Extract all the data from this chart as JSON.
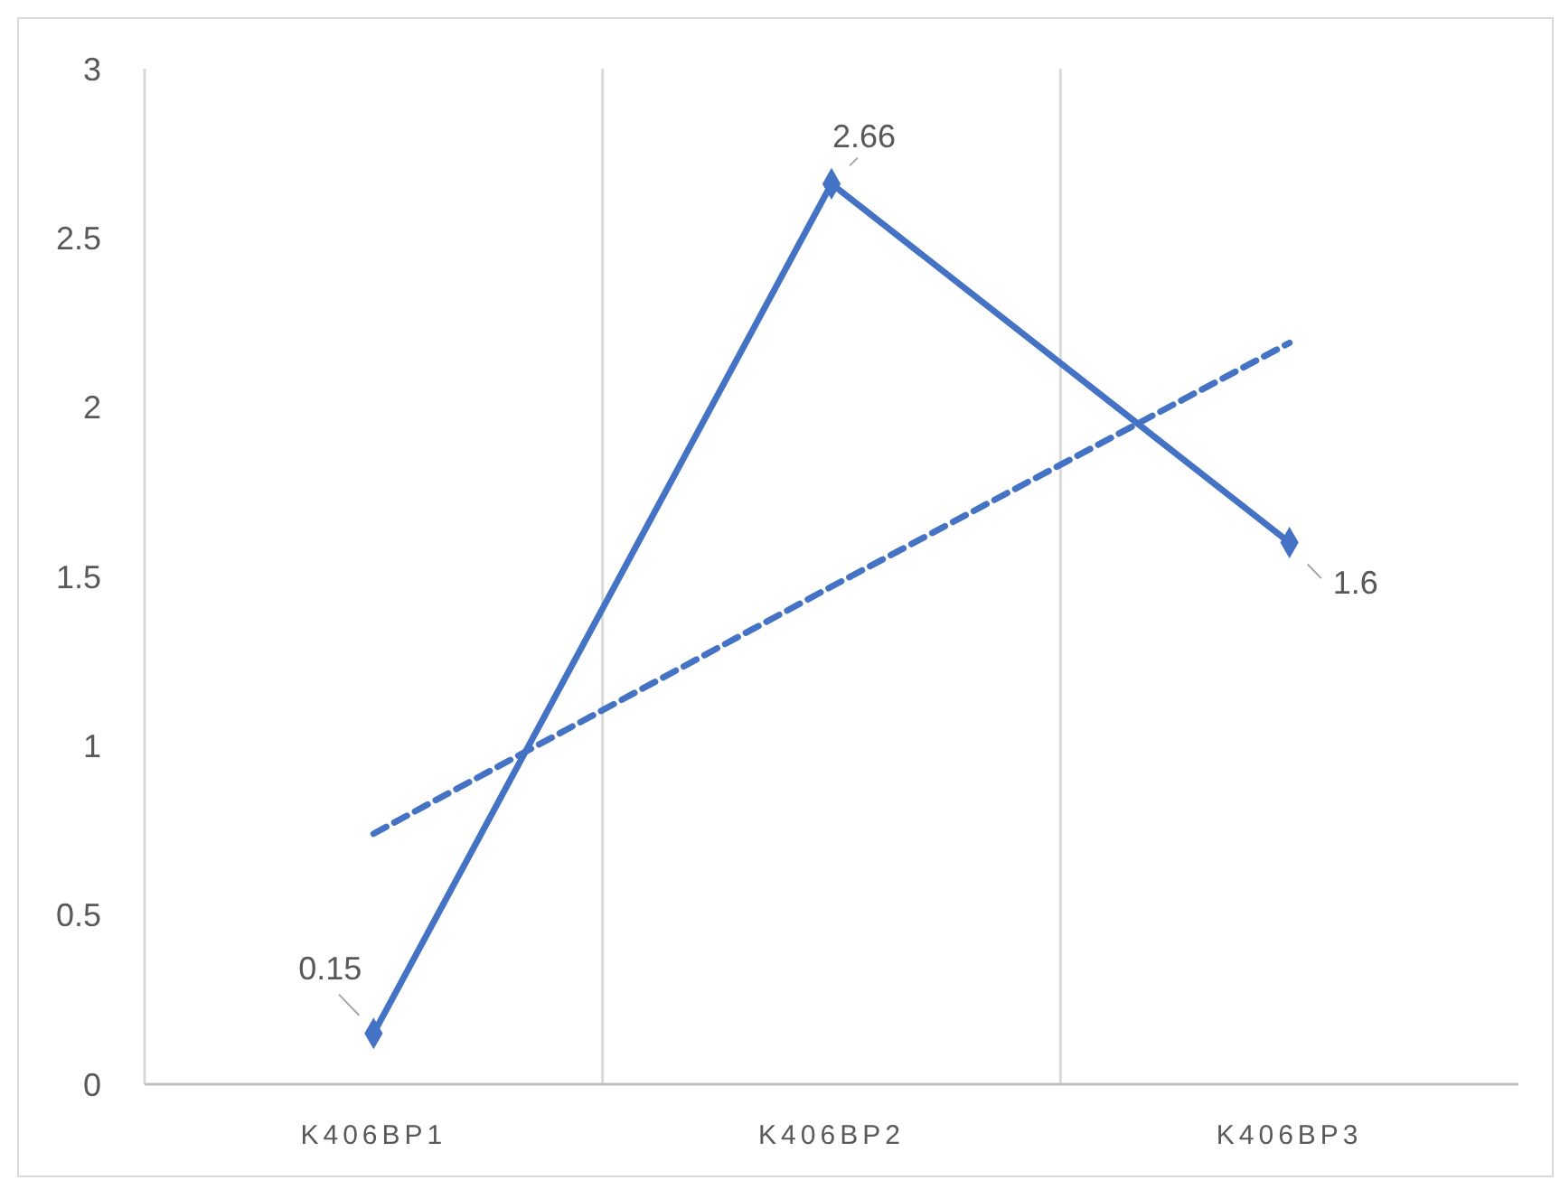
{
  "chart_data": {
    "type": "line",
    "categories": [
      "K406BP1",
      "K406BP2",
      "K406BP3"
    ],
    "series": [
      {
        "color": "#4472c4",
        "values": [
          0.15,
          2.66,
          1.6
        ],
        "value_labels": [
          "0.15",
          "2.66",
          "1.6"
        ],
        "marker": "diamond",
        "line_style": "solid"
      },
      {
        "color": "#4472c4",
        "values": [
          0.74,
          1.47,
          2.19
        ],
        "marker": "none",
        "line_style": "dashed"
      }
    ],
    "ylim": [
      0,
      3
    ],
    "yticks": [
      0,
      0.5,
      1,
      1.5,
      2,
      2.5,
      3
    ],
    "grid": "x"
  }
}
